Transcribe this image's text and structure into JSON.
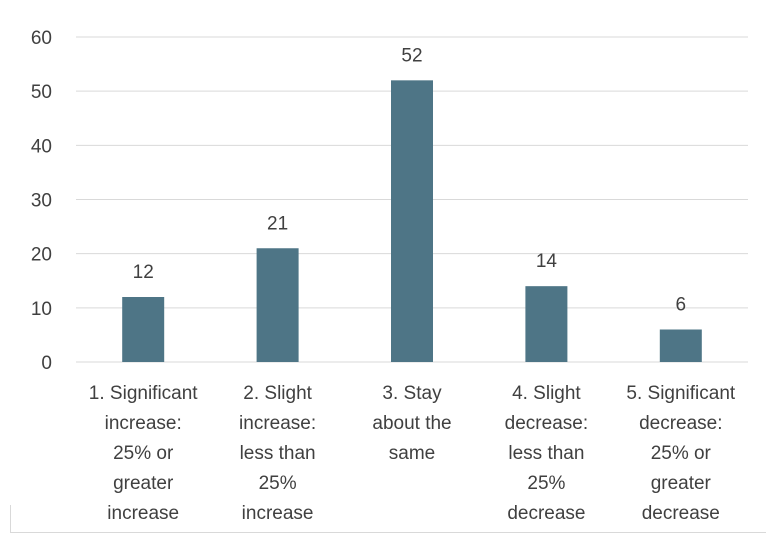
{
  "chart_data": {
    "type": "bar",
    "title": "",
    "xlabel": "",
    "ylabel": "",
    "ylim": [
      0,
      60
    ],
    "yticks": [
      0,
      10,
      20,
      30,
      40,
      50,
      60
    ],
    "grid": true,
    "legend": "none",
    "bar_color": "#4e7586",
    "gridline_color": "#d9d9d9",
    "text_color": "#404040",
    "categories": [
      [
        "1. Significant",
        "increase:",
        "25% or",
        "greater",
        "increase"
      ],
      [
        "2. Slight",
        "increase:",
        "less than",
        "25%",
        "increase"
      ],
      [
        "3. Stay",
        "about the",
        "same"
      ],
      [
        "4. Slight",
        "decrease:",
        "less than",
        "25%",
        "decrease"
      ],
      [
        "5. Significant",
        "decrease:",
        "25% or",
        "greater",
        "decrease"
      ]
    ],
    "values": [
      12,
      21,
      52,
      14,
      6
    ],
    "data_labels": [
      "12",
      "21",
      "52",
      "14",
      "6"
    ]
  }
}
